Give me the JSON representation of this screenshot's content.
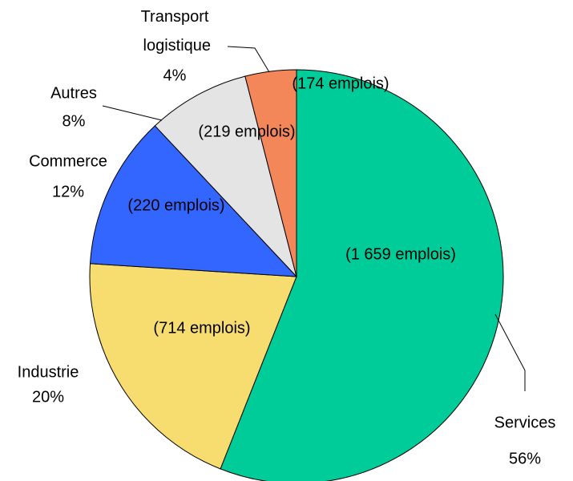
{
  "chart_data": {
    "type": "pie",
    "categories": [
      "Services",
      "Industrie",
      "Commerce",
      "Autres",
      "Transport logistique"
    ],
    "values": [
      56,
      20,
      12,
      8,
      4
    ],
    "value_labels": [
      "56%",
      "20%",
      "12%",
      "8%",
      "4%"
    ],
    "slice_labels": [
      "(1 659 emplois)",
      "(714 emplois)",
      "(220 emplois)",
      "(219 emplois)",
      "(174 emplois)"
    ],
    "colors": [
      "#00cc99",
      "#f7dc6f",
      "#3366ff",
      "#e4e4e4",
      "#f4875a"
    ]
  }
}
